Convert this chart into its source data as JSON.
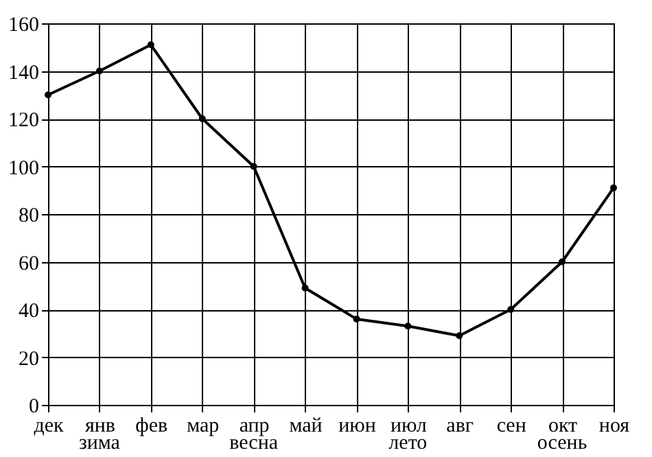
{
  "chart_data": {
    "type": "line",
    "categories": [
      "дек",
      "янв",
      "фев",
      "мар",
      "апр",
      "май",
      "июн",
      "июл",
      "авг",
      "сен",
      "окт",
      "ноя"
    ],
    "series": [
      {
        "color": "#000000",
        "values": [
          130,
          140,
          151,
          120,
          100,
          49,
          36,
          33,
          29,
          40,
          60,
          91
        ]
      }
    ],
    "ylim": [
      0,
      160
    ],
    "yticks": [
      0,
      20,
      40,
      60,
      80,
      100,
      120,
      140,
      160
    ],
    "grid": true,
    "marker": "circle",
    "line_style": "solid",
    "annotations": [
      "зима",
      "весна",
      "лето",
      "осень"
    ]
  }
}
